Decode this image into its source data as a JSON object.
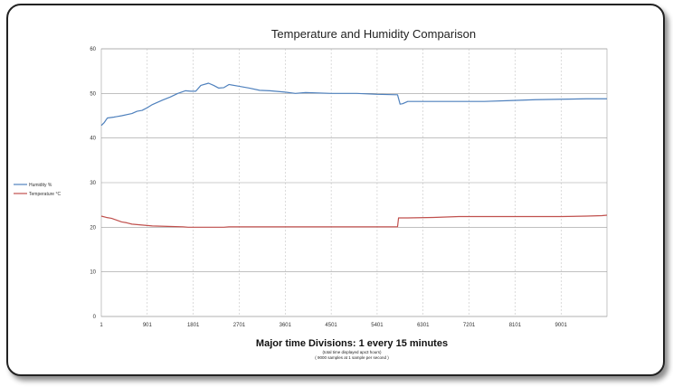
{
  "chart_data": {
    "type": "line",
    "title": "Temperature and Humidity Comparison",
    "xlabel": "Major time Divisions:  1 every 15 minutes",
    "xnote1": "(total time displayed apx3 hours)",
    "xnote2": "( 9000 samples at 1 sample per second )",
    "xlim": [
      1,
      9900
    ],
    "ylim": [
      0,
      60
    ],
    "yticks": [
      0,
      10,
      20,
      30,
      40,
      50,
      60
    ],
    "xticks": [
      1,
      901,
      1801,
      2701,
      3601,
      4501,
      5401,
      6301,
      7201,
      8101,
      9001
    ],
    "grid": true,
    "legend_position": "left",
    "series": [
      {
        "name": "Humidity %",
        "color": "#4f81bd",
        "x": [
          1,
          60,
          120,
          250,
          400,
          600,
          700,
          800,
          900,
          1000,
          1200,
          1350,
          1500,
          1650,
          1750,
          1850,
          1950,
          2100,
          2200,
          2300,
          2400,
          2500,
          2700,
          2900,
          3100,
          3300,
          3600,
          3800,
          4000,
          4500,
          5000,
          5400,
          5800,
          5850,
          5900,
          6000,
          6200,
          6500,
          7000,
          7500,
          8000,
          8500,
          9000,
          9500,
          9900
        ],
        "values": [
          42.8,
          43.5,
          44.5,
          44.7,
          45.0,
          45.5,
          46.0,
          46.2,
          46.8,
          47.5,
          48.5,
          49.2,
          50.0,
          50.6,
          50.5,
          50.5,
          51.8,
          52.3,
          51.8,
          51.2,
          51.3,
          52.0,
          51.6,
          51.2,
          50.7,
          50.6,
          50.3,
          50.0,
          50.2,
          50.0,
          50.0,
          49.8,
          49.7,
          47.6,
          47.7,
          48.2,
          48.2,
          48.2,
          48.2,
          48.2,
          48.4,
          48.6,
          48.7,
          48.8,
          48.8
        ]
      },
      {
        "name": "Temperature °C",
        "color": "#c0504d",
        "x": [
          1,
          100,
          200,
          300,
          400,
          500,
          600,
          800,
          1000,
          1300,
          1600,
          1700,
          2000,
          2400,
          2500,
          3000,
          4000,
          5000,
          5800,
          5820,
          6000,
          6500,
          7000,
          7500,
          8000,
          8500,
          9000,
          9500,
          9800,
          9900
        ],
        "values": [
          22.5,
          22.2,
          22.0,
          21.6,
          21.2,
          21.0,
          20.7,
          20.5,
          20.3,
          20.2,
          20.1,
          20.0,
          20.0,
          20.0,
          20.1,
          20.1,
          20.1,
          20.1,
          20.1,
          22.1,
          22.1,
          22.2,
          22.4,
          22.4,
          22.4,
          22.4,
          22.4,
          22.5,
          22.6,
          22.7
        ]
      }
    ]
  }
}
